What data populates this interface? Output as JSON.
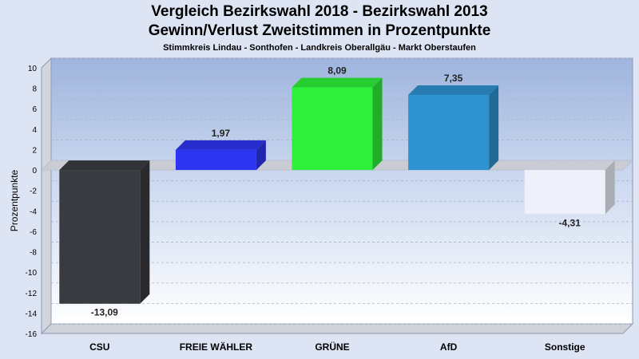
{
  "chart_data": {
    "type": "bar",
    "title": "Vergleich Bezirkswahl 2018 - Bezirkswahl 2013",
    "subtitle": "Gewinn/Verlust Zweitstimmen in Prozentpunkte",
    "caption": "Stimmkreis Lindau - Sonthofen - Landkreis Oberallgäu - Markt Oberstaufen",
    "ylabel": "Prozentpunkte",
    "xlabel": "",
    "ylim": [
      -16,
      10
    ],
    "yticks": [
      10,
      8,
      6,
      4,
      2,
      0,
      -2,
      -4,
      -6,
      -8,
      -10,
      -12,
      -14,
      -16
    ],
    "grid": true,
    "categories": [
      "CSU",
      "FREIE WÄHLER",
      "GRÜNE",
      "AfD",
      "Sonstige"
    ],
    "values": [
      -13.09,
      1.97,
      8.09,
      7.35,
      -4.31
    ],
    "value_labels": [
      "-13,09",
      "1,97",
      "8,09",
      "7,35",
      "-4,31"
    ],
    "colors": [
      "#3a3b40",
      "#2e35f0",
      "#2ef03a",
      "#2e93d0",
      "#eef0fa"
    ]
  }
}
